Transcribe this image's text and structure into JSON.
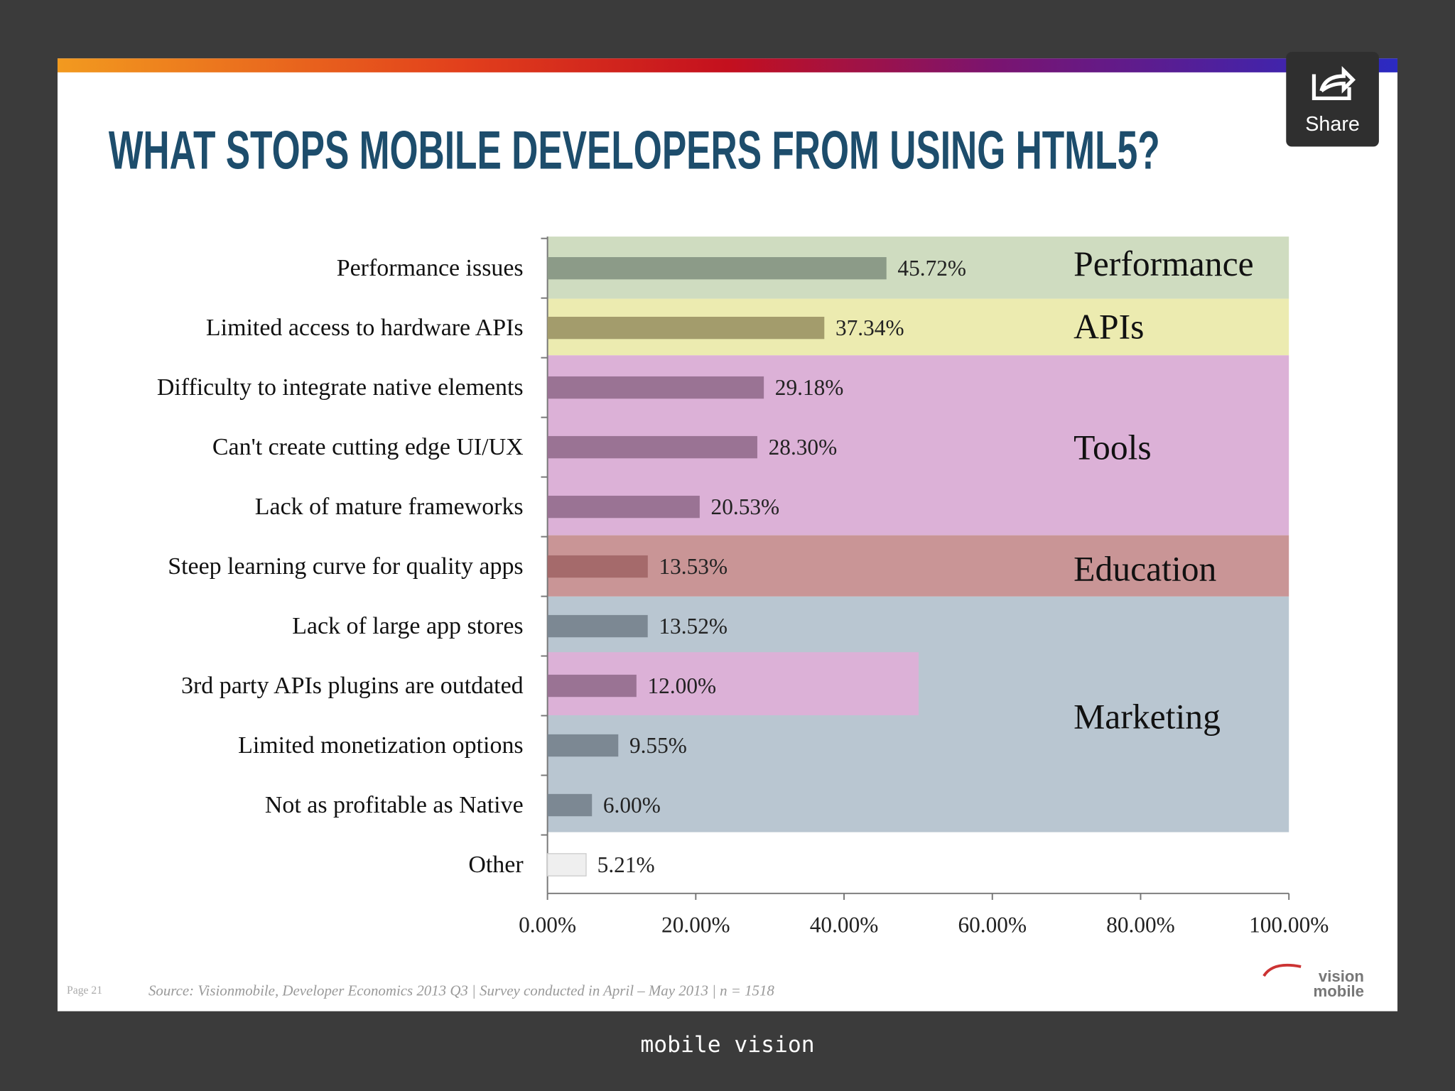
{
  "chart_data": {
    "type": "barh",
    "title": "WHAT STOPS MOBILE DEVELOPERS FROM USING HTML5?",
    "categories": [
      "Performance issues",
      "Limited access to hardware APIs",
      "Difficulty to integrate native elements",
      "Can't create cutting edge UI/UX",
      "Lack of mature frameworks",
      "Steep learning curve for quality apps",
      "Lack of large app stores",
      "3rd party APIs plugins are outdated",
      "Limited monetization options",
      "Not as profitable as Native",
      "Other"
    ],
    "values": [
      45.72,
      37.34,
      29.18,
      28.3,
      20.53,
      13.53,
      13.52,
      12.0,
      9.55,
      6.0,
      5.21
    ],
    "value_labels": [
      "45.72%",
      "37.34%",
      "29.18%",
      "28.30%",
      "20.53%",
      "13.53%",
      "13.52%",
      "12.00%",
      "9.55%",
      "6.00%",
      "5.21%"
    ],
    "colors": [
      "#8c9b88",
      "#a39c6c",
      "#9a7394",
      "#9a7394",
      "#9a7394",
      "#a56a6b",
      "#7c8893",
      "#9a7394",
      "#7c8893",
      "#7c8893",
      "#efefef"
    ],
    "groups": [
      "Performance",
      "APIs",
      "Tools",
      "Education",
      "Marketing"
    ],
    "xlim": [
      0,
      100
    ],
    "xticks": [
      {
        "value": 0,
        "label": "0.00%"
      },
      {
        "value": 20,
        "label": "20.00%"
      },
      {
        "value": 40,
        "label": "40.00%"
      },
      {
        "value": 60,
        "label": "60.00%"
      },
      {
        "value": 80,
        "label": "80.00%"
      },
      {
        "value": 100,
        "label": "100.00%"
      }
    ]
  },
  "footer": {
    "page": "Page 21",
    "source": "Source: Visionmobile, Developer Economics 2013 Q3 | Survey conducted in April – May 2013 | n = 1518",
    "logo": [
      "vision",
      "mobile"
    ]
  },
  "share_button": "Share",
  "caption": "mobile vision"
}
